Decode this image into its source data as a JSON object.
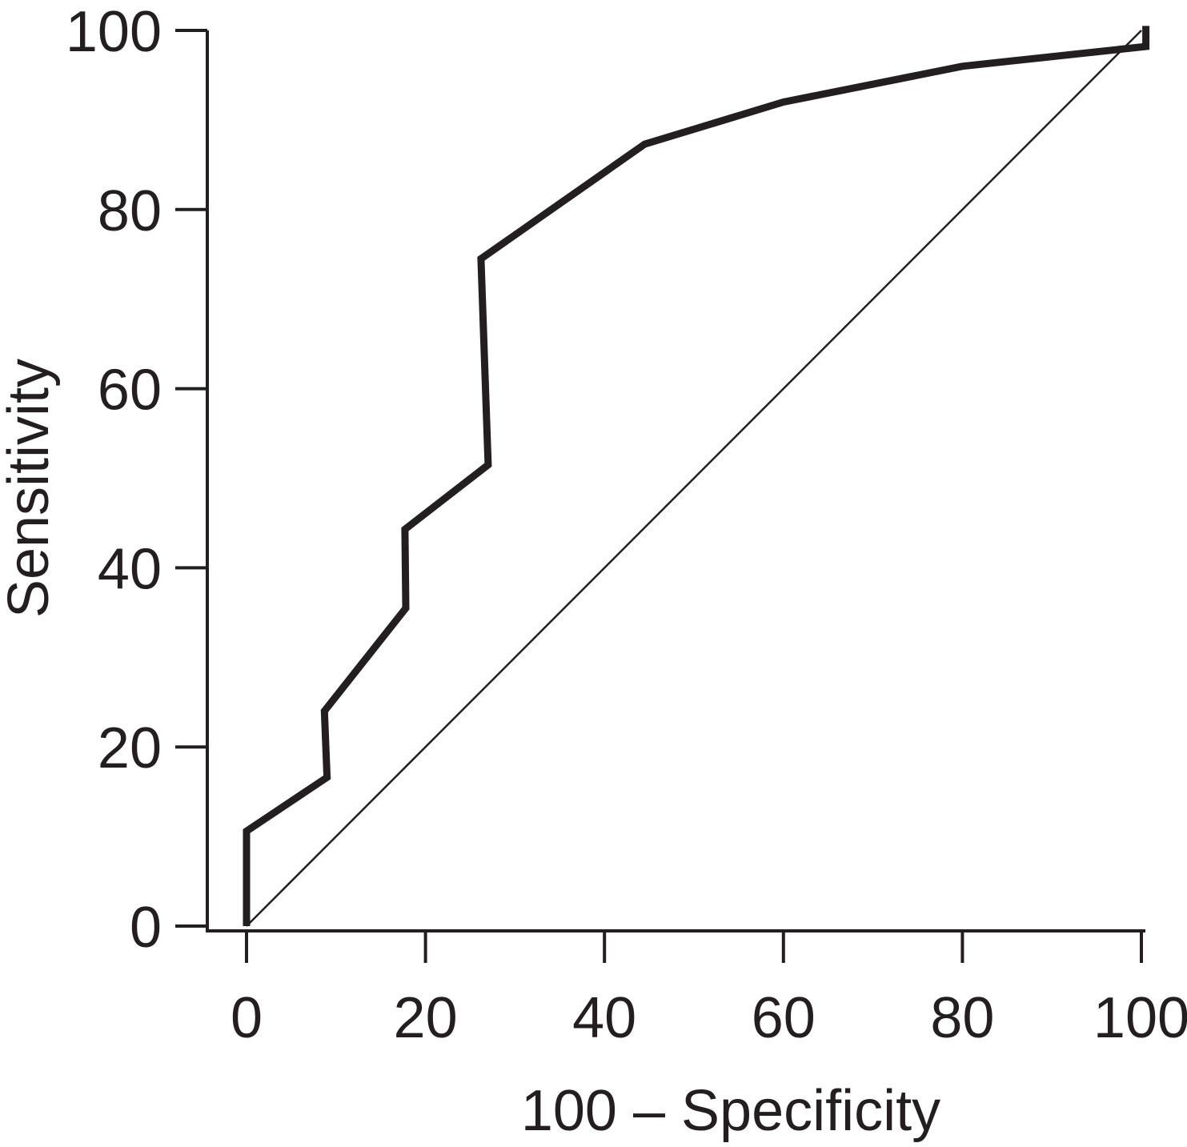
{
  "chart_data": {
    "type": "line",
    "xlabel": "100 – Specificity",
    "ylabel": "Sensitivity",
    "xlim": [
      0,
      100
    ],
    "ylim": [
      0,
      100
    ],
    "x_ticks": [
      "0",
      "20",
      "40",
      "60",
      "80",
      "100"
    ],
    "y_ticks": [
      "0",
      "20",
      "40",
      "60",
      "80",
      "100"
    ],
    "grid": false,
    "series": [
      {
        "x": [
          0,
          0,
          9,
          8.7,
          17.8,
          17.7,
          27,
          26.2,
          44.5,
          60,
          80,
          100.5,
          100.5
        ],
        "y": [
          0,
          10.6,
          16.6,
          24,
          35.5,
          44.3,
          51.5,
          74.5,
          87.3,
          92,
          96,
          98.2,
          100.5
        ]
      },
      {
        "x": [
          0,
          100
        ],
        "y": [
          0,
          100
        ]
      }
    ],
    "colors": {
      "line": "#231f20"
    }
  }
}
